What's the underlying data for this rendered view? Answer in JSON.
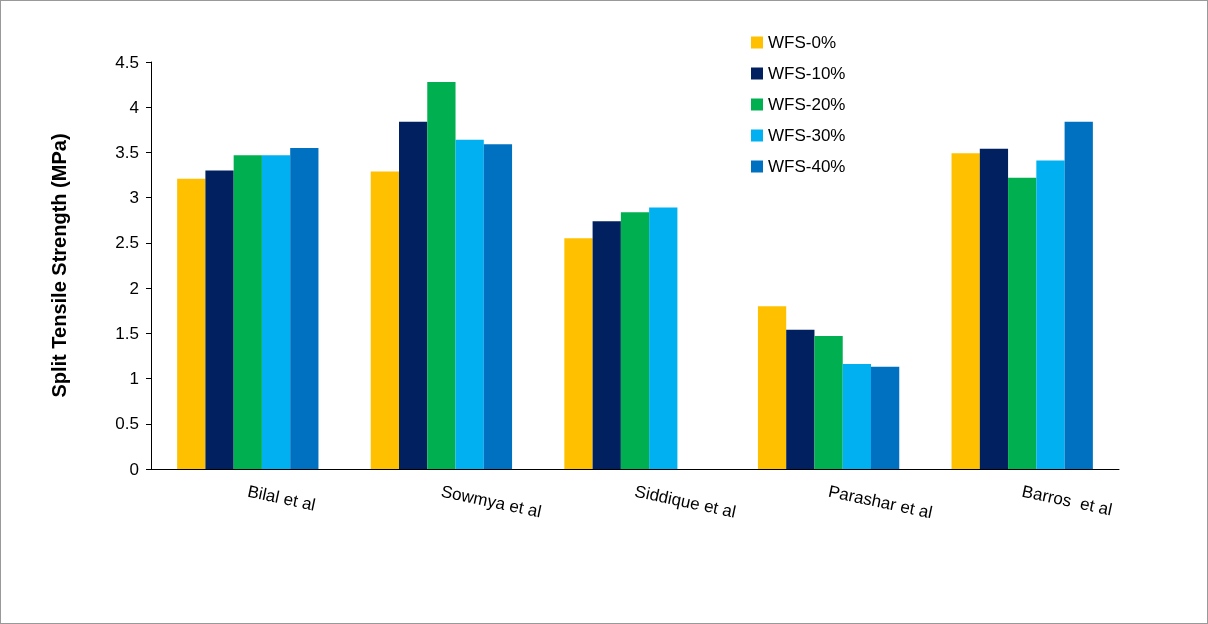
{
  "chart_data": {
    "type": "bar",
    "ylabel": "Split Tensile Strength (MPa)",
    "categories": [
      "Bilal et al",
      "Sowmya et al",
      "Siddique et al",
      "Parashar et al",
      "Barros  et al"
    ],
    "series": [
      {
        "name": "WFS-0%",
        "color": "#ffc000",
        "values": [
          3.21,
          3.29,
          2.55,
          1.8,
          3.49
        ]
      },
      {
        "name": "WFS-10%",
        "color": "#002060",
        "values": [
          3.3,
          3.84,
          2.74,
          1.54,
          3.54
        ]
      },
      {
        "name": "WFS-20%",
        "color": "#00b050",
        "values": [
          3.47,
          4.28,
          2.84,
          1.47,
          3.22
        ]
      },
      {
        "name": "WFS-30%",
        "color": "#00b0f0",
        "values": [
          3.47,
          3.64,
          2.89,
          1.16,
          3.41
        ]
      },
      {
        "name": "WFS-40%",
        "color": "#0070c0",
        "values": [
          3.55,
          3.59,
          null,
          1.13,
          3.84
        ]
      }
    ],
    "ylim": [
      0,
      4.5
    ],
    "yticks": [
      0,
      0.5,
      1,
      1.5,
      2,
      2.5,
      3,
      3.5,
      4,
      4.5
    ],
    "grid": false,
    "legend": "top right"
  }
}
